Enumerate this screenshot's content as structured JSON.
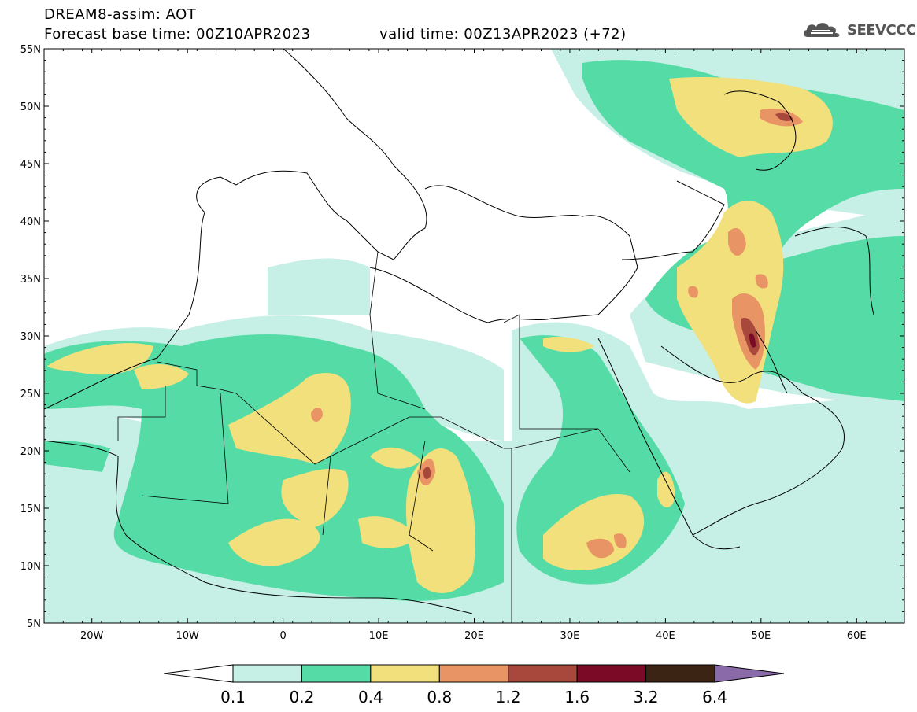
{
  "header": {
    "title": "DREAM8-assim: AOT",
    "forecast_base": "Forecast base time: 00Z10APR2023",
    "valid_time": "valid time: 00Z13APR2023 (+72)"
  },
  "logo": {
    "text": "SEEVCCC",
    "icon": "cloud-icon"
  },
  "map": {
    "lon_range": [
      -25,
      65
    ],
    "lat_range": [
      5,
      55
    ],
    "lat_ticks": [
      "55N",
      "50N",
      "45N",
      "40N",
      "35N",
      "30N",
      "25N",
      "20N",
      "15N",
      "10N",
      "5N"
    ],
    "lon_ticks": [
      "20W",
      "10W",
      "0",
      "10E",
      "20E",
      "30E",
      "40E",
      "50E",
      "60E"
    ]
  },
  "colorbar": {
    "levels": [
      "0.1",
      "0.2",
      "0.4",
      "0.8",
      "1.2",
      "1.6",
      "3.2",
      "6.4"
    ],
    "colors": [
      "#ffffff",
      "#c6efe6",
      "#55dca6",
      "#f2e07c",
      "#e89464",
      "#a8483c",
      "#7a0a26",
      "#3c2414",
      "#8a6aa8"
    ]
  }
}
